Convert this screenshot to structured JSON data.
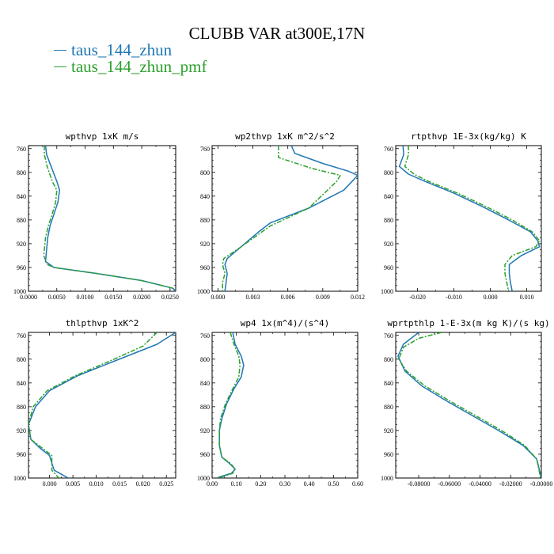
{
  "figure": {
    "title": "CLUBB VAR at300E,17N",
    "legend": [
      {
        "name": "taus_144_zhun",
        "color": "#1f77b4"
      },
      {
        "name": "taus_144_zhun_pmf",
        "color": "#2ca02c"
      }
    ]
  },
  "chart_data": [
    {
      "type": "line",
      "title": "wpthvp  1xK m/s",
      "xlabel": "",
      "ylabel": "",
      "xlim": [
        0,
        0.026
      ],
      "ylim": [
        1000,
        755
      ],
      "x_ticks": [
        "0.0000",
        "0.0050",
        "0.0100",
        "0.0150",
        "0.0200",
        "0.0250"
      ],
      "x_tick_values": [
        0,
        0.005,
        0.01,
        0.015,
        0.02,
        0.025
      ],
      "y_ticks": [
        760,
        800,
        840,
        880,
        920,
        960,
        1000
      ],
      "series": [
        {
          "name": "taus_144_zhun",
          "color": "#1f77b4",
          "dash": "solid",
          "x": [
            0.003,
            0.0032,
            0.004,
            0.005,
            0.0055,
            0.0052,
            0.0045,
            0.0038,
            0.0034,
            0.003,
            0.0045,
            0.012,
            0.02,
            0.0255,
            0.026
          ],
          "y": [
            755,
            770,
            790,
            815,
            830,
            850,
            870,
            890,
            910,
            950,
            960,
            970,
            982,
            995,
            1000
          ]
        },
        {
          "name": "taus_144_zhun_pmf",
          "color": "#2ca02c",
          "dash": "dashed",
          "x": [
            0.0028,
            0.0028,
            0.0033,
            0.0042,
            0.005,
            0.0048,
            0.0042,
            0.0035,
            0.003,
            0.0027,
            0.0033,
            0.0045,
            0.012,
            0.02,
            0.0255
          ],
          "y": [
            755,
            770,
            790,
            815,
            830,
            850,
            870,
            890,
            910,
            940,
            955,
            960,
            970,
            982,
            995
          ]
        }
      ]
    },
    {
      "type": "line",
      "title": "wp2thvp  1xK m^2/s^2",
      "xlabel": "",
      "ylabel": "",
      "xlim": [
        -0.0005,
        0.012
      ],
      "ylim": [
        1000,
        755
      ],
      "x_ticks": [
        "0.000",
        "0.003",
        "0.006",
        "0.009",
        "0.012"
      ],
      "x_tick_values": [
        0,
        0.003,
        0.006,
        0.009,
        0.012
      ],
      "y_ticks": [
        760,
        800,
        840,
        880,
        920,
        960,
        1000
      ],
      "series": [
        {
          "name": "taus_144_zhun",
          "color": "#1f77b4",
          "dash": "solid",
          "x": [
            0.0063,
            0.0066,
            0.009,
            0.0112,
            0.012,
            0.0108,
            0.0078,
            0.0045,
            0.0035,
            0.002,
            0.0008,
            0.0006,
            0.0008,
            0.0007,
            0.0006
          ],
          "y": [
            755,
            768,
            785,
            798,
            805,
            830,
            860,
            885,
            900,
            925,
            945,
            955,
            970,
            985,
            1000
          ]
        },
        {
          "name": "taus_144_zhun_pmf",
          "color": "#2ca02c",
          "dash": "dashed",
          "x": [
            0.0052,
            0.0052,
            0.008,
            0.0105,
            0.0102,
            0.0078,
            0.0045,
            0.002,
            0.0005,
            0.0004,
            0.0006,
            0.0004,
            0.0004
          ],
          "y": [
            755,
            775,
            793,
            805,
            815,
            860,
            890,
            925,
            945,
            955,
            970,
            985,
            1000
          ]
        }
      ]
    },
    {
      "type": "line",
      "title": "rtpthvp  1E-3x(kg/kg) K",
      "xlabel": "",
      "ylabel": "",
      "xlim": [
        -0.026,
        0.014
      ],
      "ylim": [
        1000,
        755
      ],
      "x_ticks": [
        "-0.020",
        "-0.010",
        "0.000",
        "0.010"
      ],
      "x_tick_values": [
        -0.02,
        -0.01,
        0,
        0.01
      ],
      "y_ticks": [
        760,
        800,
        840,
        880,
        920,
        960,
        1000
      ],
      "series": [
        {
          "name": "taus_144_zhun",
          "color": "#1f77b4",
          "dash": "solid",
          "x": [
            -0.024,
            -0.0238,
            -0.025,
            -0.0225,
            -0.018,
            -0.01,
            -0.002,
            0.005,
            0.011,
            0.013,
            0.0135,
            0.0085,
            0.0052,
            0.0052,
            0.0055,
            0.006
          ],
          "y": [
            755,
            770,
            790,
            803,
            815,
            835,
            858,
            880,
            900,
            915,
            925,
            940,
            955,
            970,
            985,
            1000
          ]
        },
        {
          "name": "taus_144_zhun_pmf",
          "color": "#2ca02c",
          "dash": "dashed",
          "x": [
            -0.0225,
            -0.0225,
            -0.0235,
            -0.021,
            -0.017,
            -0.009,
            -0.001,
            0.006,
            0.0115,
            0.0135,
            0.0125,
            0.006,
            0.004,
            0.004,
            0.0045,
            0.005
          ],
          "y": [
            755,
            770,
            790,
            803,
            815,
            835,
            858,
            880,
            900,
            915,
            925,
            940,
            955,
            970,
            985,
            1000
          ]
        }
      ]
    },
    {
      "type": "line",
      "title": "thlpthvp  1xK^2",
      "xlabel": "",
      "ylabel": "",
      "xlim": [
        -0.0045,
        0.027
      ],
      "ylim": [
        1000,
        755
      ],
      "x_ticks": [
        "0.000",
        "0.005",
        "0.010",
        "0.015",
        "0.020",
        "0.025"
      ],
      "x_tick_values": [
        0,
        0.005,
        0.01,
        0.015,
        0.02,
        0.025
      ],
      "y_ticks": [
        760,
        800,
        840,
        880,
        920,
        960,
        1000
      ],
      "series": [
        {
          "name": "taus_144_zhun",
          "color": "#1f77b4",
          "dash": "solid",
          "x": [
            0.027,
            0.023,
            0.014,
            0.006,
            0.0,
            -0.003,
            -0.0045,
            -0.004,
            -0.002,
            0.0,
            0.0005,
            0.001,
            0.004
          ],
          "y": [
            755,
            775,
            803,
            828,
            853,
            880,
            910,
            935,
            950,
            962,
            975,
            987,
            1000
          ]
        },
        {
          "name": "taus_144_zhun_pmf",
          "color": "#2ca02c",
          "dash": "dashed",
          "x": [
            0.023,
            0.02,
            0.013,
            0.0055,
            -0.0005,
            -0.0035,
            -0.0045,
            -0.004,
            -0.0015,
            0.0005,
            0.0005,
            0.0005,
            0.002
          ],
          "y": [
            755,
            778,
            803,
            828,
            853,
            880,
            910,
            935,
            950,
            962,
            975,
            987,
            1000
          ]
        }
      ]
    },
    {
      "type": "line",
      "title": "wp4  1x(m^4)/(s^4)",
      "xlabel": "",
      "ylabel": "",
      "xlim": [
        0,
        0.6
      ],
      "ylim": [
        1000,
        755
      ],
      "x_ticks": [
        "0.00",
        "0.10",
        "0.20",
        "0.30",
        "0.40",
        "0.50",
        "0.60"
      ],
      "x_tick_values": [
        0,
        0.1,
        0.2,
        0.3,
        0.4,
        0.5,
        0.6
      ],
      "y_ticks": [
        760,
        800,
        840,
        880,
        920,
        960,
        1000
      ],
      "series": [
        {
          "name": "taus_144_zhun",
          "color": "#1f77b4",
          "dash": "solid",
          "x": [
            0.085,
            0.095,
            0.12,
            0.13,
            0.12,
            0.09,
            0.06,
            0.04,
            0.03,
            0.03,
            0.04,
            0.07,
            0.095,
            0.08,
            0.04,
            0.02
          ],
          "y": [
            755,
            775,
            795,
            810,
            830,
            850,
            875,
            900,
            920,
            945,
            965,
            975,
            985,
            992,
            997,
            1000
          ]
        },
        {
          "name": "taus_144_zhun_pmf",
          "color": "#2ca02c",
          "dash": "dashed",
          "x": [
            0.075,
            0.09,
            0.11,
            0.115,
            0.11,
            0.085,
            0.055,
            0.035,
            0.03,
            0.03,
            0.04,
            0.075,
            0.095,
            0.085,
            0.05,
            0.02
          ],
          "y": [
            755,
            775,
            795,
            810,
            830,
            850,
            875,
            900,
            920,
            945,
            965,
            975,
            985,
            992,
            997,
            1000
          ]
        }
      ]
    },
    {
      "type": "line",
      "title": "wprtpthlp  1-E-3x(m kg K)/(s kg)",
      "xlabel": "",
      "ylabel": "",
      "xlim": [
        -0.095,
        0.0
      ],
      "ylim": [
        1000,
        755
      ],
      "x_ticks": [
        "-0.08000",
        "-0.06000",
        "-0.04000",
        "-0.02000",
        "-0.00000"
      ],
      "x_tick_values": [
        -0.08,
        -0.06,
        -0.04,
        -0.02,
        0
      ],
      "y_ticks": [
        760,
        800,
        840,
        880,
        920,
        960,
        1000
      ],
      "series": [
        {
          "name": "taus_144_zhun",
          "color": "#1f77b4",
          "dash": "solid",
          "x": [
            -0.08,
            -0.09,
            -0.0935,
            -0.089,
            -0.078,
            -0.062,
            -0.045,
            -0.028,
            -0.012,
            -0.003,
            0.0
          ],
          "y": [
            755,
            775,
            795,
            820,
            845,
            870,
            895,
            920,
            945,
            968,
            1000
          ]
        },
        {
          "name": "taus_144_zhun_pmf",
          "color": "#2ca02c",
          "dash": "dashed",
          "x": [
            -0.065,
            -0.08,
            -0.09,
            -0.093,
            -0.088,
            -0.076,
            -0.06,
            -0.043,
            -0.026,
            -0.011,
            -0.003,
            -0.0005
          ],
          "y": [
            755,
            765,
            780,
            800,
            820,
            845,
            870,
            895,
            920,
            945,
            968,
            1000
          ]
        }
      ]
    }
  ]
}
